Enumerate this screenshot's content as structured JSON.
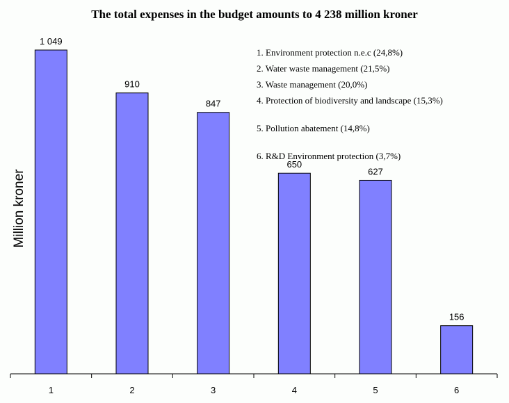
{
  "chart_data": {
    "type": "bar",
    "title": "The total expenses in the budget amounts to 4 238 million kroner",
    "xlabel": "",
    "ylabel": "Million kroner",
    "categories": [
      "1",
      "2",
      "3",
      "4",
      "5",
      "6"
    ],
    "values": [
      1049,
      910,
      847,
      650,
      627,
      156
    ],
    "value_labels": [
      "1 049",
      "910",
      "847",
      "650",
      "627",
      "156"
    ],
    "ylim": [
      0,
      1049
    ],
    "grid": false,
    "bar_color": "#8080ff",
    "legend_placement": "top-right",
    "legend": [
      "1.  Environment protection n.e.c (24,8%)",
      "2.  Water waste management (21,5%)",
      "3.  Waste management (20,0%)",
      "4.  Protection of biodiversity and landscape (15,3%)",
      "5.  Pollution abatement (14,8%)",
      "6.  R&D Environment protection (3,7%)"
    ]
  }
}
